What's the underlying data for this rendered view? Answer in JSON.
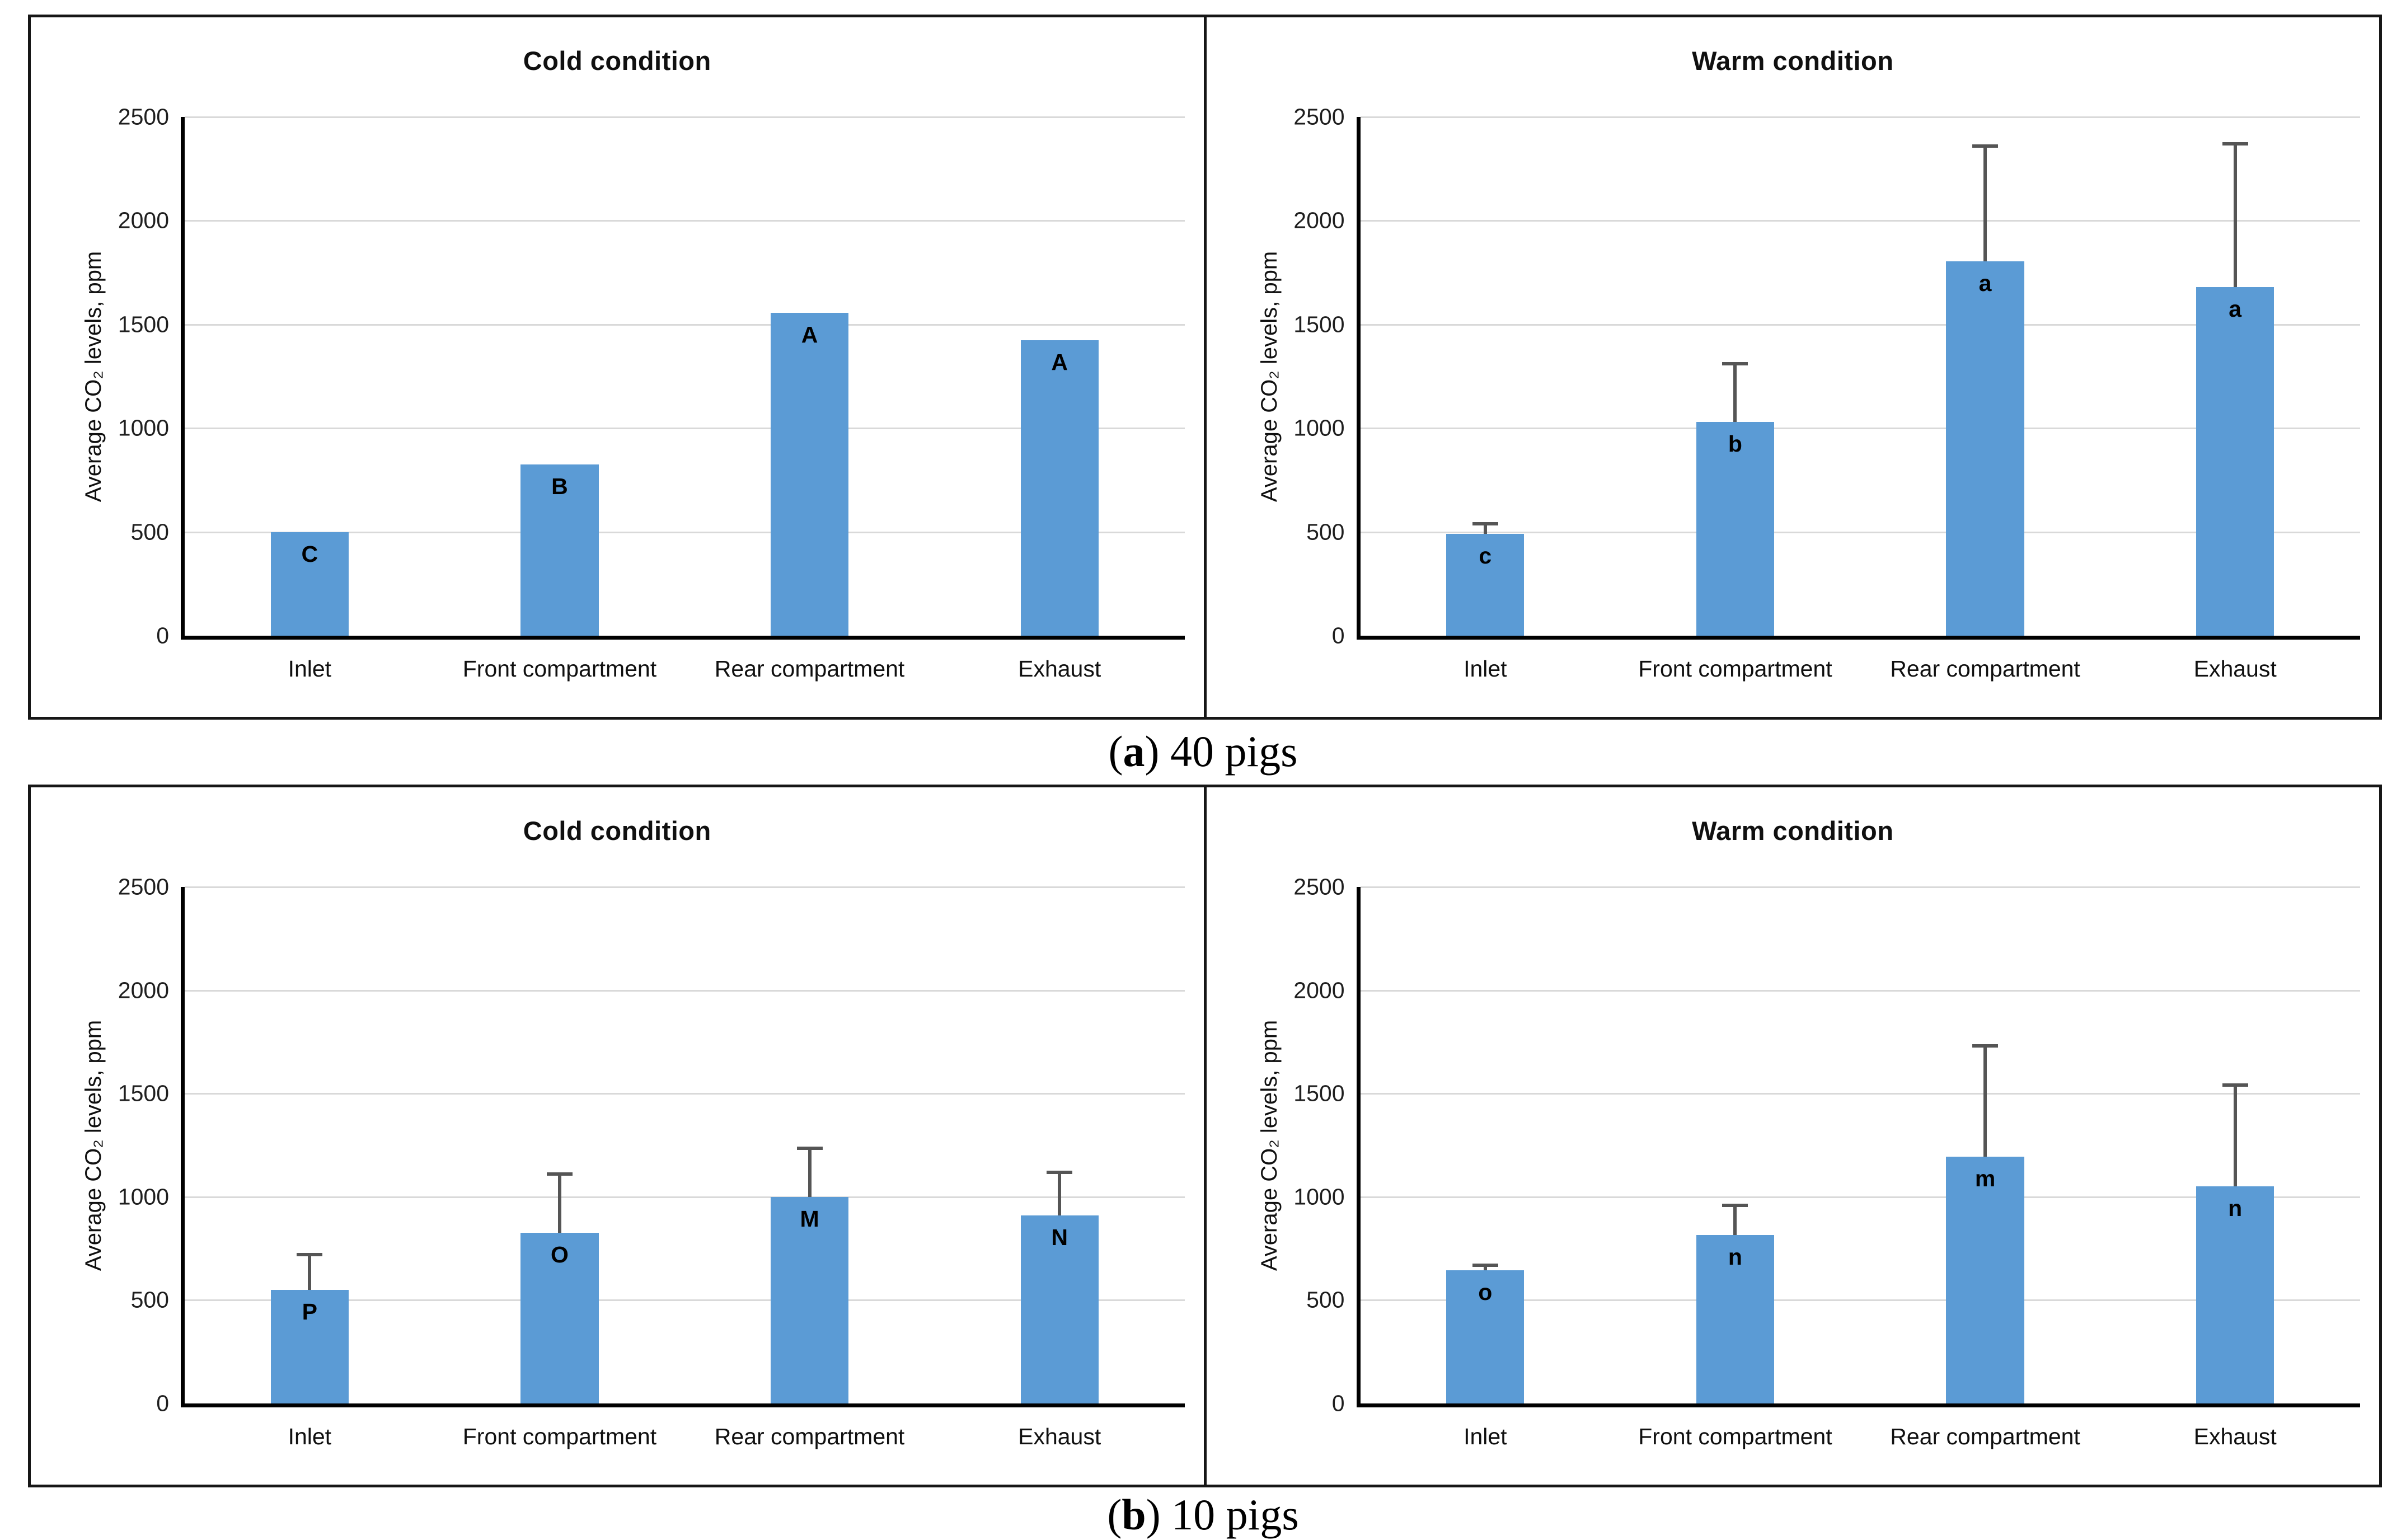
{
  "figure": {
    "captions": [
      {
        "pre": "(",
        "bold": "a",
        "post": ") 40 pigs"
      },
      {
        "pre": "(",
        "bold": "b",
        "post": ") 10 pigs"
      }
    ],
    "colors": {
      "bar": "#5B9BD5",
      "error_bar": "#555555",
      "gridline": "#D9D9D9",
      "axis": "#000000",
      "panel_border": "#161616"
    }
  },
  "chart_data": [
    {
      "type": "bar",
      "panel": "(a) 40 pigs",
      "title": "Cold condition",
      "categories": [
        "Inlet",
        "Front compartment",
        "Rear compartment",
        "Exhaust"
      ],
      "values": [
        500,
        825,
        1555,
        1425
      ],
      "sig_labels": [
        "C",
        "B",
        "A",
        "A"
      ],
      "error_top": [
        null,
        null,
        null,
        null
      ],
      "ylabel": "Average CO₂ levels, ppm",
      "xlabel": "",
      "ylim": [
        0,
        2500
      ],
      "yticks": [
        0,
        500,
        1000,
        1500,
        2000,
        2500
      ],
      "grid": true,
      "legend": "none"
    },
    {
      "type": "bar",
      "panel": "(a) 40 pigs",
      "title": "Warm condition",
      "categories": [
        "Inlet",
        "Front compartment",
        "Rear compartment",
        "Exhaust"
      ],
      "values": [
        490,
        1030,
        1805,
        1680
      ],
      "sig_labels": [
        "c",
        "b",
        "a",
        "a"
      ],
      "error_top": [
        540,
        1310,
        2360,
        2370
      ],
      "ylabel": "Average CO₂ levels, ppm",
      "xlabel": "",
      "ylim": [
        0,
        2500
      ],
      "yticks": [
        0,
        500,
        1000,
        1500,
        2000,
        2500
      ],
      "grid": true,
      "legend": "none"
    },
    {
      "type": "bar",
      "panel": "(b) 10 pigs",
      "title": "Cold condition",
      "categories": [
        "Inlet",
        "Front compartment",
        "Rear compartment",
        "Exhaust"
      ],
      "values": [
        550,
        825,
        1000,
        910
      ],
      "sig_labels": [
        "P",
        "O",
        "M",
        "N"
      ],
      "error_top": [
        720,
        1110,
        1235,
        1120
      ],
      "ylabel": "Average CO₂ levels, ppm",
      "xlabel": "",
      "ylim": [
        0,
        2500
      ],
      "yticks": [
        0,
        500,
        1000,
        1500,
        2000,
        2500
      ],
      "grid": true,
      "legend": "none"
    },
    {
      "type": "bar",
      "panel": "(b) 10 pigs",
      "title": "Warm condition",
      "categories": [
        "Inlet",
        "Front compartment",
        "Rear compartment",
        "Exhaust"
      ],
      "values": [
        645,
        815,
        1195,
        1050
      ],
      "sig_labels": [
        "o",
        "n",
        "m",
        "n"
      ],
      "error_top": [
        670,
        960,
        1730,
        1540
      ],
      "ylabel": "Average CO₂ levels, ppm",
      "xlabel": "",
      "ylim": [
        0,
        2500
      ],
      "yticks": [
        0,
        500,
        1000,
        1500,
        2000,
        2500
      ],
      "grid": true,
      "legend": "none"
    }
  ]
}
